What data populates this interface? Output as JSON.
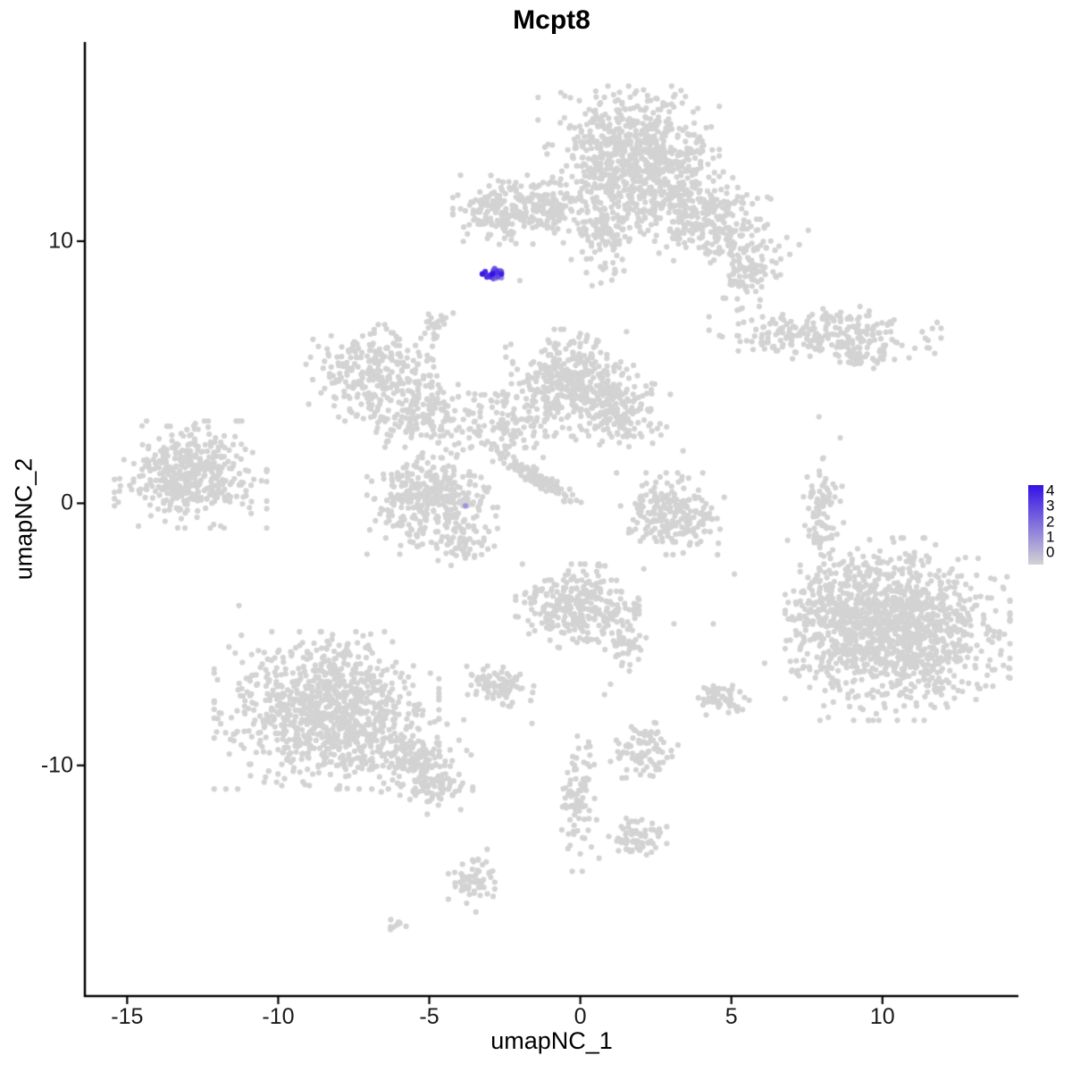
{
  "title": "Mcpt8",
  "legend": {
    "ticks": [
      "4",
      "3",
      "2",
      "1",
      "0"
    ]
  },
  "chart_data": {
    "type": "scatter",
    "title": "Mcpt8",
    "xlabel": "umapNC_1",
    "ylabel": "umapNC_2",
    "xlim": [
      -16.4,
      14.5
    ],
    "ylim": [
      -18.8,
      17.6
    ],
    "x_ticks": [
      -15,
      -10,
      -5,
      0,
      5,
      10
    ],
    "y_ticks": [
      10,
      0,
      -10
    ],
    "grid": false,
    "legend_position": "right",
    "color_low": "#D3D3D3",
    "color_high": "#3412E6",
    "color_max": 4,
    "clusters": [
      {
        "cx": 1.6,
        "cy": 13.4,
        "sx": 1.25,
        "sy": 1.05,
        "n": 650
      },
      {
        "cx": 3.9,
        "cy": 11.0,
        "sx": 1.45,
        "sy": 0.8,
        "rot": -0.5,
        "n": 420
      },
      {
        "cx": 5.5,
        "cy": 8.6,
        "sx": 0.4,
        "sy": 0.5,
        "n": 70
      },
      {
        "cx": 0.8,
        "cy": 10.4,
        "sx": 0.45,
        "sy": 0.9,
        "n": 130
      },
      {
        "cx": -2.3,
        "cy": 11.2,
        "sx": 0.8,
        "sy": 0.55,
        "n": 230
      },
      {
        "cx": -0.9,
        "cy": 11.3,
        "sx": 0.4,
        "sy": 0.35,
        "n": 60
      },
      {
        "cx": -4.8,
        "cy": 6.9,
        "sx": 0.25,
        "sy": 0.3,
        "n": 25
      },
      {
        "cx": 8.1,
        "cy": 6.5,
        "sx": 1.6,
        "sy": 0.42,
        "n": 240
      },
      {
        "cx": 9.2,
        "cy": 5.6,
        "sx": 0.5,
        "sy": 0.25,
        "n": 40
      },
      {
        "cx": -6.8,
        "cy": 4.9,
        "sx": 0.95,
        "sy": 0.8,
        "n": 270
      },
      {
        "cx": -5.2,
        "cy": 3.3,
        "sx": 0.8,
        "sy": 0.65,
        "n": 150
      },
      {
        "cx": -0.4,
        "cy": 4.6,
        "sx": 0.9,
        "sy": 0.85,
        "n": 360
      },
      {
        "cx": 1.3,
        "cy": 3.6,
        "sx": 0.7,
        "sy": 0.6,
        "n": 170
      },
      {
        "cx": -2.6,
        "cy": 3.0,
        "sx": 0.85,
        "sy": 0.8,
        "n": 110
      },
      {
        "cx": -1.5,
        "cy": 1.0,
        "sx": 0.75,
        "sy": 0.12,
        "rot": -0.62,
        "n": 120
      },
      {
        "cx": -4.9,
        "cy": 0.1,
        "sx": 0.9,
        "sy": 0.85,
        "n": 360
      },
      {
        "cx": -3.9,
        "cy": -1.5,
        "sx": 0.35,
        "sy": 0.4,
        "n": 45
      },
      {
        "cx": -12.9,
        "cy": 1.1,
        "sx": 1.05,
        "sy": 0.85,
        "n": 420
      },
      {
        "cx": 8.0,
        "cy": -0.4,
        "sx": 0.3,
        "sy": 0.9,
        "n": 90
      },
      {
        "cx": 3.0,
        "cy": -0.4,
        "sx": 0.75,
        "sy": 0.65,
        "n": 220
      },
      {
        "cx": 10.5,
        "cy": -4.8,
        "sx": 1.55,
        "sy": 1.45,
        "n": 1250
      },
      {
        "cx": 8.2,
        "cy": -4.2,
        "sx": 0.55,
        "sy": 0.95,
        "n": 130
      },
      {
        "cx": -0.1,
        "cy": -4.0,
        "sx": 0.85,
        "sy": 0.7,
        "n": 300
      },
      {
        "cx": 1.5,
        "cy": -5.2,
        "sx": 0.3,
        "sy": 0.5,
        "n": 45
      },
      {
        "cx": -2.7,
        "cy": -6.9,
        "sx": 0.5,
        "sy": 0.35,
        "n": 85
      },
      {
        "cx": -8.4,
        "cy": -7.9,
        "sx": 1.55,
        "sy": 1.25,
        "n": 950
      },
      {
        "cx": -5.6,
        "cy": -9.7,
        "sx": 0.85,
        "sy": 0.6,
        "n": 170
      },
      {
        "cx": -4.8,
        "cy": -10.9,
        "sx": 0.35,
        "sy": 0.4,
        "n": 55
      },
      {
        "cx": 4.7,
        "cy": -7.4,
        "sx": 0.4,
        "sy": 0.3,
        "n": 55
      },
      {
        "cx": 2.2,
        "cy": -9.4,
        "sx": 0.5,
        "sy": 0.45,
        "n": 85
      },
      {
        "cx": -0.1,
        "cy": -11.4,
        "sx": 0.3,
        "sy": 1.1,
        "n": 85
      },
      {
        "cx": 1.9,
        "cy": -12.8,
        "sx": 0.4,
        "sy": 0.35,
        "n": 65
      },
      {
        "cx": -3.6,
        "cy": -14.4,
        "sx": 0.32,
        "sy": 0.5,
        "n": 60
      },
      {
        "cx": -6.2,
        "cy": -16.1,
        "sx": 0.18,
        "sy": 0.14,
        "n": 8
      },
      {
        "name": "mcpt8-positive",
        "cx": -2.85,
        "cy": 8.72,
        "sx": 0.17,
        "sy": 0.12,
        "rot": 0.6,
        "n": 32,
        "expr": [
          1.2,
          4
        ]
      }
    ],
    "singletons": [
      [
        3.4,
        2.0
      ],
      [
        2.5,
        0.8
      ],
      [
        8.6,
        2.5
      ],
      [
        7.9,
        3.3
      ],
      [
        5.1,
        -2.7
      ],
      [
        6.1,
        -6.1
      ],
      [
        4.4,
        -4.6
      ],
      [
        0.8,
        -7.3
      ],
      [
        -1.6,
        -8.4
      ],
      [
        -11.3,
        -3.9
      ],
      [
        -0.3,
        9.3
      ],
      [
        0.2,
        8.8
      ],
      [
        -2.0,
        8.5
      ],
      [
        1.0,
        -6.9
      ],
      [
        3.1,
        -4.6
      ],
      [
        2.1,
        -2.5
      ]
    ],
    "expressing_singletons": [
      {
        "x": -3.8,
        "y": -0.1,
        "value": 1.3
      }
    ]
  }
}
